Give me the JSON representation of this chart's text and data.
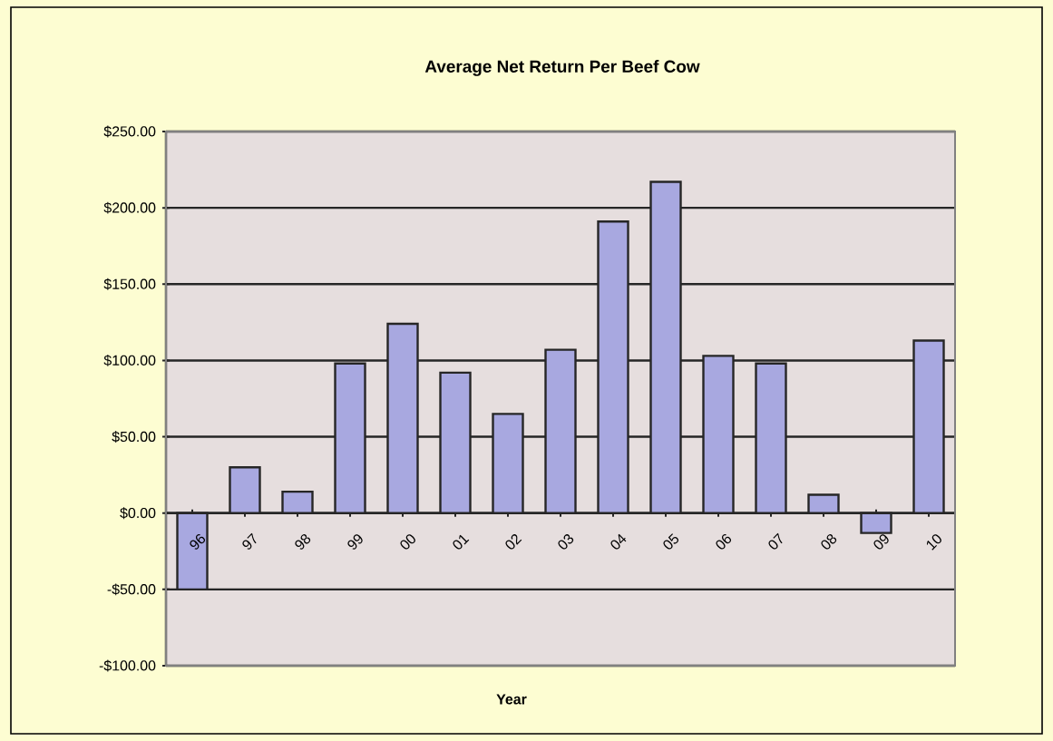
{
  "chart_data": {
    "type": "bar",
    "title": "Average Net Return Per Beef Cow",
    "xlabel": "Year",
    "categories": [
      "96",
      "97",
      "98",
      "99",
      "00",
      "01",
      "02",
      "03",
      "04",
      "05",
      "06",
      "07",
      "08",
      "09",
      "10"
    ],
    "values": [
      -50,
      30,
      14,
      98,
      124,
      92,
      65,
      107,
      191,
      217,
      103,
      98,
      12,
      -13,
      113
    ],
    "color": "#a8a8e0",
    "ylim": [
      -100,
      250
    ],
    "yticks": [
      {
        "value": -100,
        "label": "-$100.00"
      },
      {
        "value": -50,
        "label": "-$50.00"
      },
      {
        "value": 0,
        "label": "$0.00"
      },
      {
        "value": 50,
        "label": "$50.00"
      },
      {
        "value": 100,
        "label": "$100.00"
      },
      {
        "value": 150,
        "label": "$150.00"
      },
      {
        "value": 200,
        "label": "$200.00"
      },
      {
        "value": 250,
        "label": "$250.00"
      }
    ],
    "grid": "y"
  }
}
